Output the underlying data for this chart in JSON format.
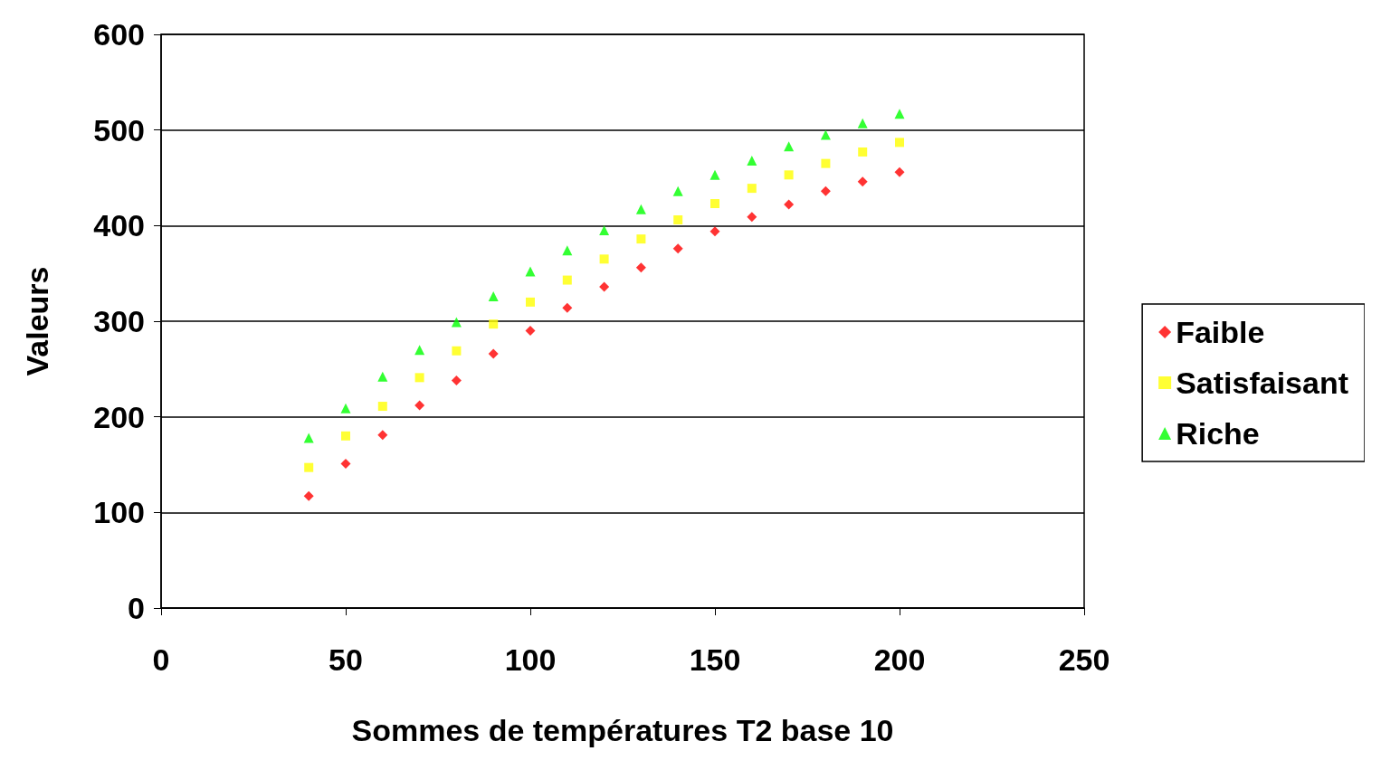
{
  "chart_data": {
    "type": "scatter",
    "xlabel": "Sommes de températures T2 base 10",
    "ylabel": "Valeurs",
    "x": [
      40,
      50,
      60,
      70,
      80,
      90,
      100,
      110,
      120,
      130,
      140,
      150,
      160,
      170,
      180,
      190,
      200
    ],
    "series": [
      {
        "name": "Faible",
        "color": "#ff0000",
        "marker": "diamond",
        "values": [
          117,
          151,
          181,
          212,
          238,
          266,
          290,
          314,
          336,
          356,
          376,
          394,
          409,
          422,
          436,
          446,
          456
        ]
      },
      {
        "name": "Satisfaisant",
        "color": "#ffff00",
        "marker": "square",
        "values": [
          147,
          180,
          211,
          241,
          269,
          297,
          320,
          343,
          365,
          386,
          406,
          423,
          439,
          453,
          465,
          477,
          487
        ]
      },
      {
        "name": "Riche",
        "color": "#00ff00",
        "marker": "triangle",
        "values": [
          178,
          209,
          242,
          270,
          299,
          326,
          352,
          374,
          395,
          417,
          436,
          453,
          468,
          483,
          495,
          507,
          517
        ]
      }
    ],
    "xlim": [
      0,
      250
    ],
    "xticks": [
      0,
      50,
      100,
      150,
      200,
      250
    ],
    "ylim": [
      0,
      600
    ],
    "yticks": [
      0,
      100,
      200,
      300,
      400,
      500,
      600
    ],
    "grid": "y",
    "legend": "right"
  }
}
